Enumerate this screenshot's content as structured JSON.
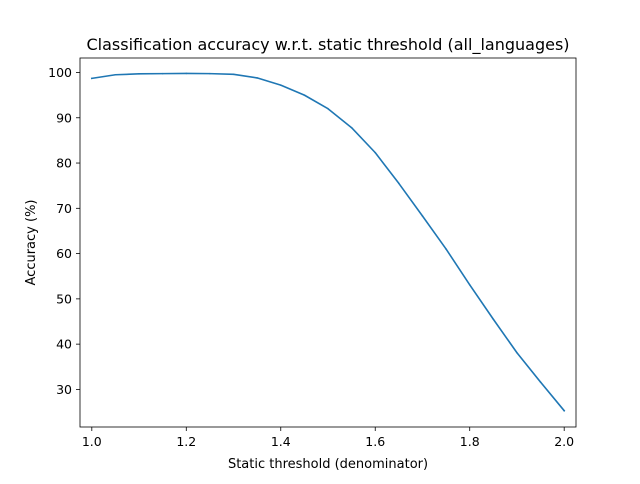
{
  "chart_data": {
    "type": "line",
    "title": "Classification accuracy w.r.t. static threshold (all_languages)",
    "xlabel": "Static threshold (denominator)",
    "ylabel": "Accuracy (%)",
    "xlim": [
      0.975,
      2.025
    ],
    "ylim": [
      21.7,
      103.2
    ],
    "x_ticks": [
      1.0,
      1.2,
      1.4,
      1.6,
      1.8,
      2.0
    ],
    "x_tick_labels": [
      "1.0",
      "1.2",
      "1.4",
      "1.6",
      "1.8",
      "2.0"
    ],
    "y_ticks": [
      30,
      40,
      50,
      60,
      70,
      80,
      90,
      100
    ],
    "y_tick_labels": [
      "30",
      "40",
      "50",
      "60",
      "70",
      "80",
      "90",
      "100"
    ],
    "grid": false,
    "series": [
      {
        "color": "#1f77b4",
        "x": [
          1.0,
          1.05,
          1.1,
          1.15,
          1.2,
          1.25,
          1.3,
          1.35,
          1.4,
          1.45,
          1.5,
          1.55,
          1.6,
          1.65,
          1.7,
          1.75,
          1.8,
          1.85,
          1.9,
          1.95,
          2.0
        ],
        "y": [
          98.7,
          99.5,
          99.7,
          99.75,
          99.8,
          99.75,
          99.6,
          98.8,
          97.2,
          95.0,
          92.0,
          87.8,
          82.3,
          75.5,
          68.3,
          61.0,
          53.1,
          45.5,
          38.1,
          31.6,
          25.3
        ]
      }
    ]
  }
}
